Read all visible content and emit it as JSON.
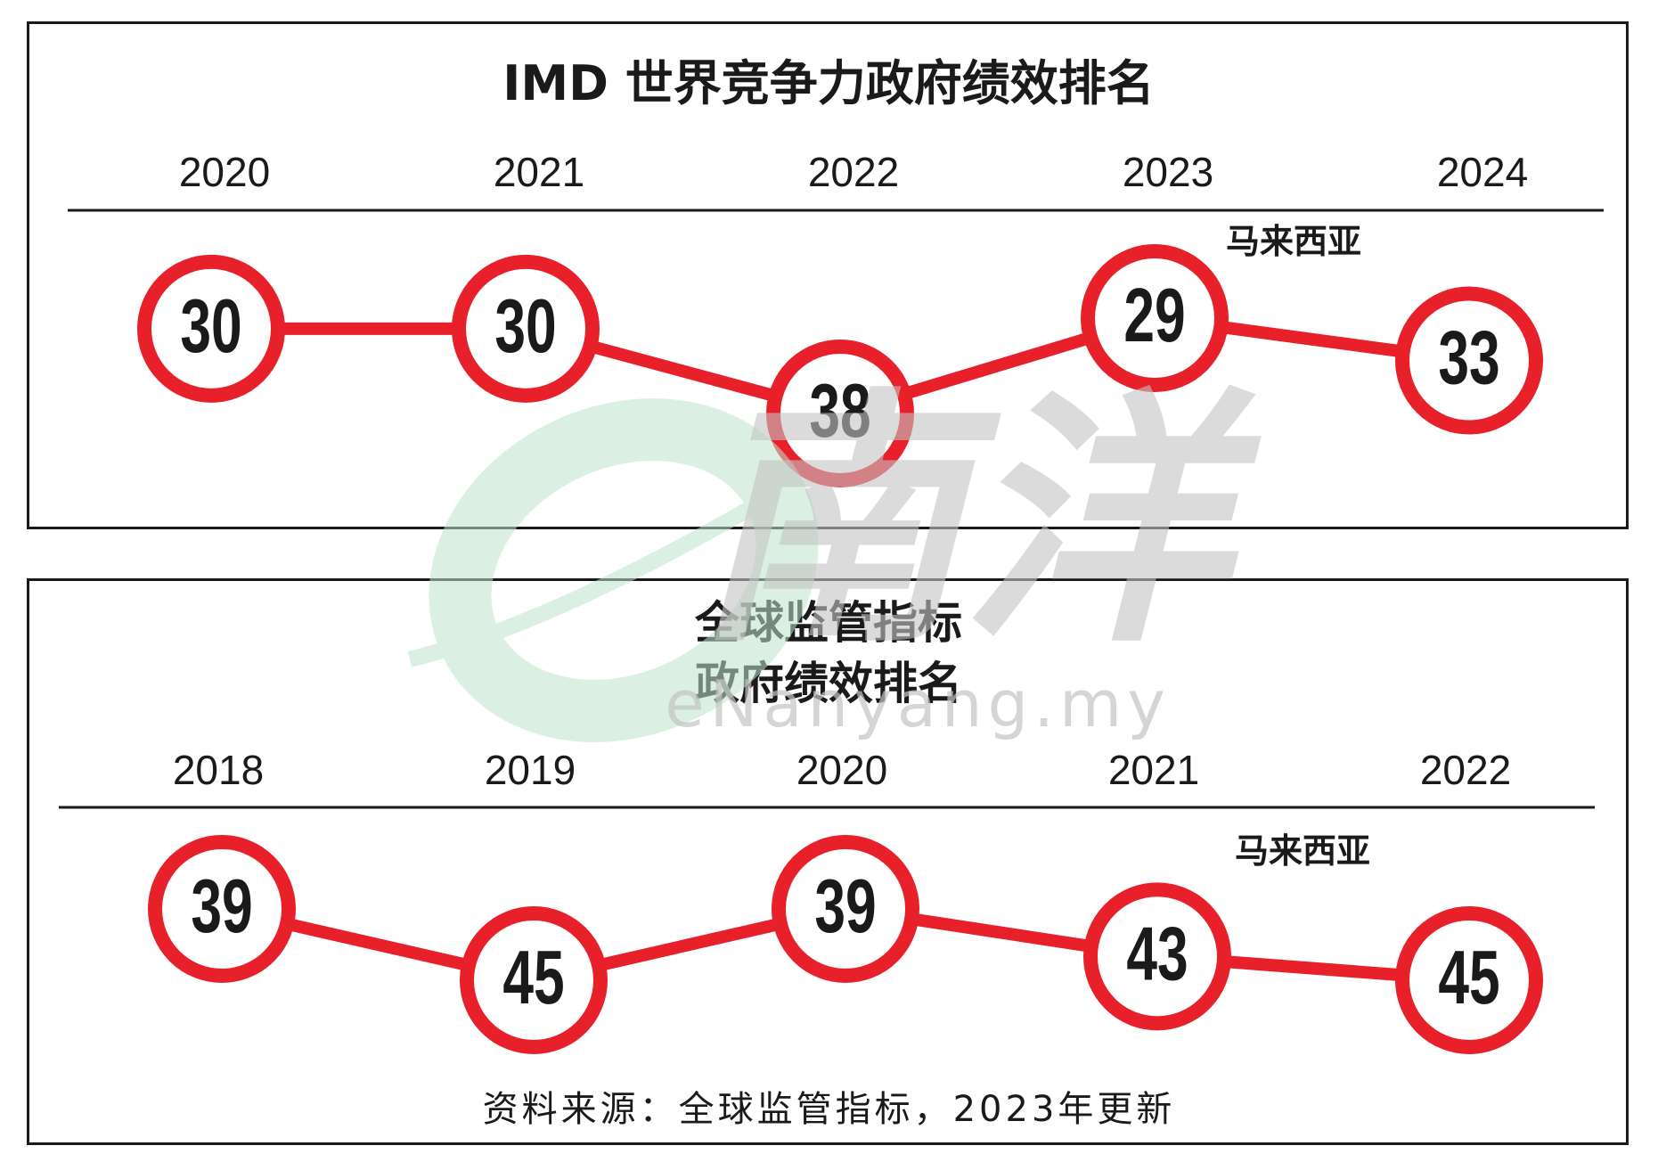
{
  "colors": {
    "accent": "#e8202a",
    "ink": "#1a1a1a",
    "watermark_green": "#bfe3cc",
    "watermark_gray": "#c4c4c4"
  },
  "chart_data": [
    {
      "type": "line",
      "title": "IMD 世界竞争力政府绩效排名",
      "categories": [
        "2020",
        "2021",
        "2022",
        "2023",
        "2024"
      ],
      "series": [
        {
          "name": "马来西亚",
          "values": [
            30,
            30,
            38,
            29,
            33
          ]
        }
      ],
      "y_scale": "rank (lower number drawn higher)",
      "grid": false,
      "legend": "top-right"
    },
    {
      "type": "line",
      "title_lines": [
        "全球监管指标",
        "政府绩效排名"
      ],
      "categories": [
        "2018",
        "2019",
        "2020",
        "2021",
        "2022"
      ],
      "series": [
        {
          "name": "马来西亚",
          "values": [
            39,
            45,
            39,
            43,
            45
          ]
        }
      ],
      "y_scale": "rank (lower number drawn higher)",
      "grid": false,
      "legend": "top-right"
    }
  ],
  "source": "资料来源：全球监管指标，2023年更新",
  "watermark": {
    "logo_text": "南洋",
    "site": "eNanyang.my"
  }
}
